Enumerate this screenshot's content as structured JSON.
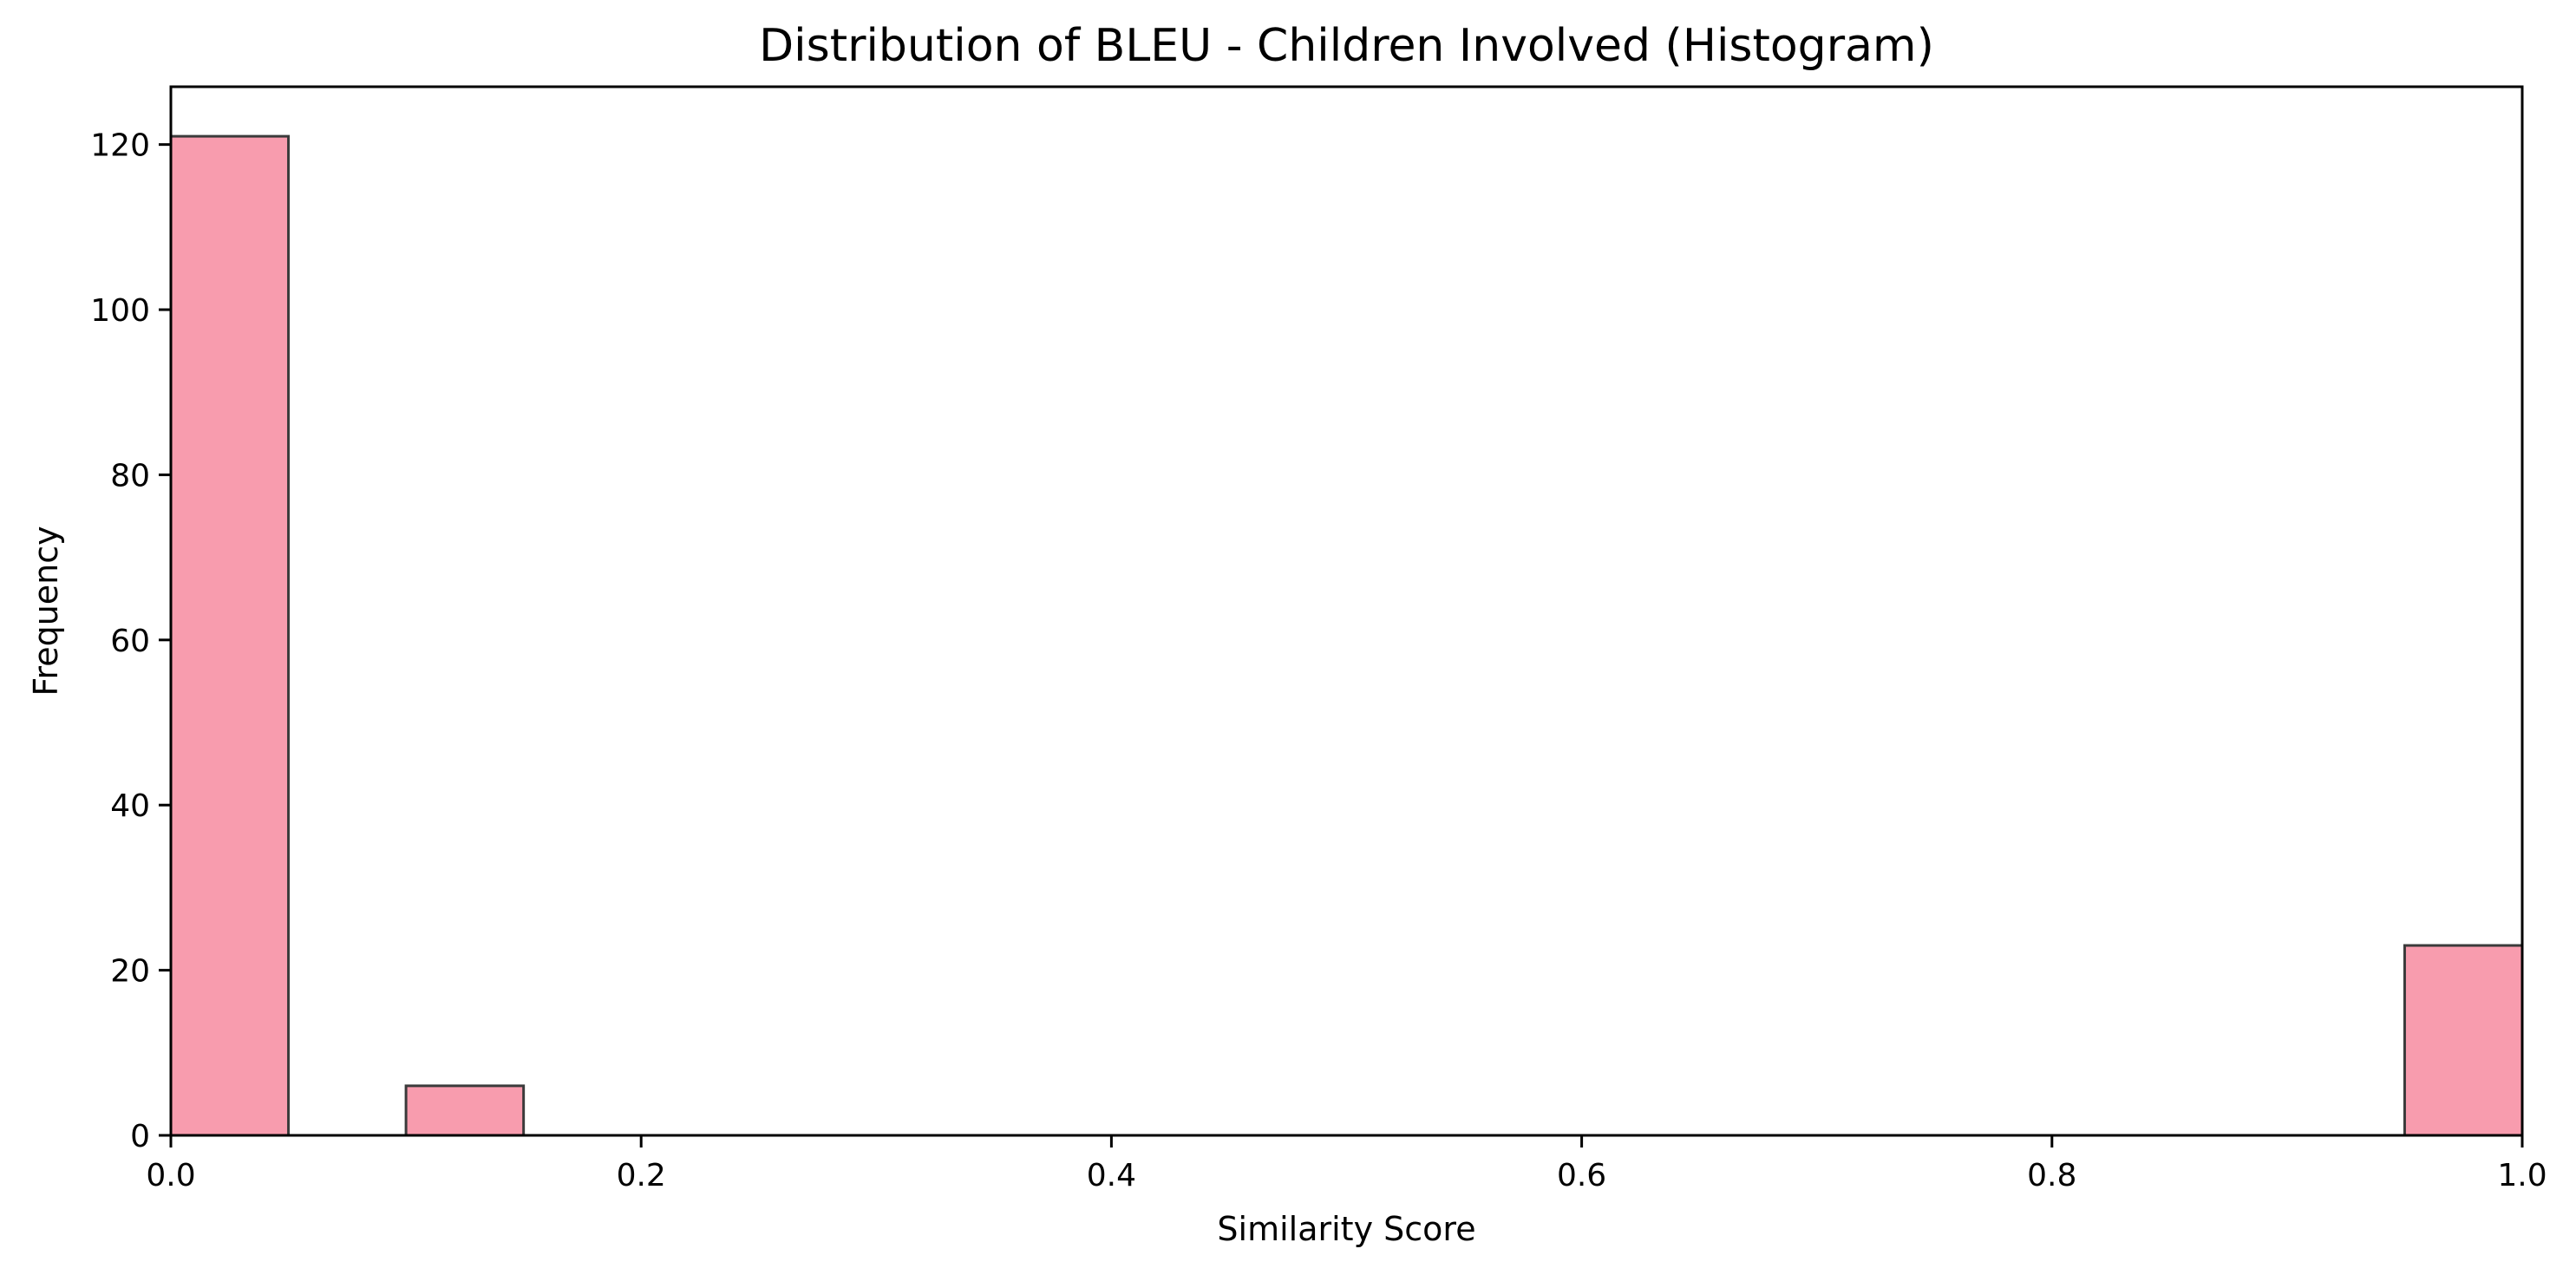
{
  "chart_data": {
    "type": "bar",
    "subtype": "histogram",
    "title": "Distribution of BLEU - Children Involved (Histogram)",
    "xlabel": "Similarity Score",
    "ylabel": "Frequency",
    "xlim": [
      0.0,
      1.0
    ],
    "ylim": [
      0,
      127
    ],
    "xticks": [
      0.0,
      0.2,
      0.4,
      0.6,
      0.8,
      1.0
    ],
    "xtick_labels": [
      "0.0",
      "0.2",
      "0.4",
      "0.6",
      "0.8",
      "1.0"
    ],
    "yticks": [
      0,
      20,
      40,
      60,
      80,
      100,
      120
    ],
    "ytick_labels": [
      "0",
      "20",
      "40",
      "60",
      "80",
      "100",
      "120"
    ],
    "bins": [
      {
        "start": 0.0,
        "end": 0.05,
        "count": 121
      },
      {
        "start": 0.1,
        "end": 0.15,
        "count": 6
      },
      {
        "start": 0.95,
        "end": 1.0,
        "count": 23
      }
    ],
    "grid": false,
    "legend": "none",
    "bar_color": "#f89cae",
    "edge_color": "#3b3b3b"
  }
}
